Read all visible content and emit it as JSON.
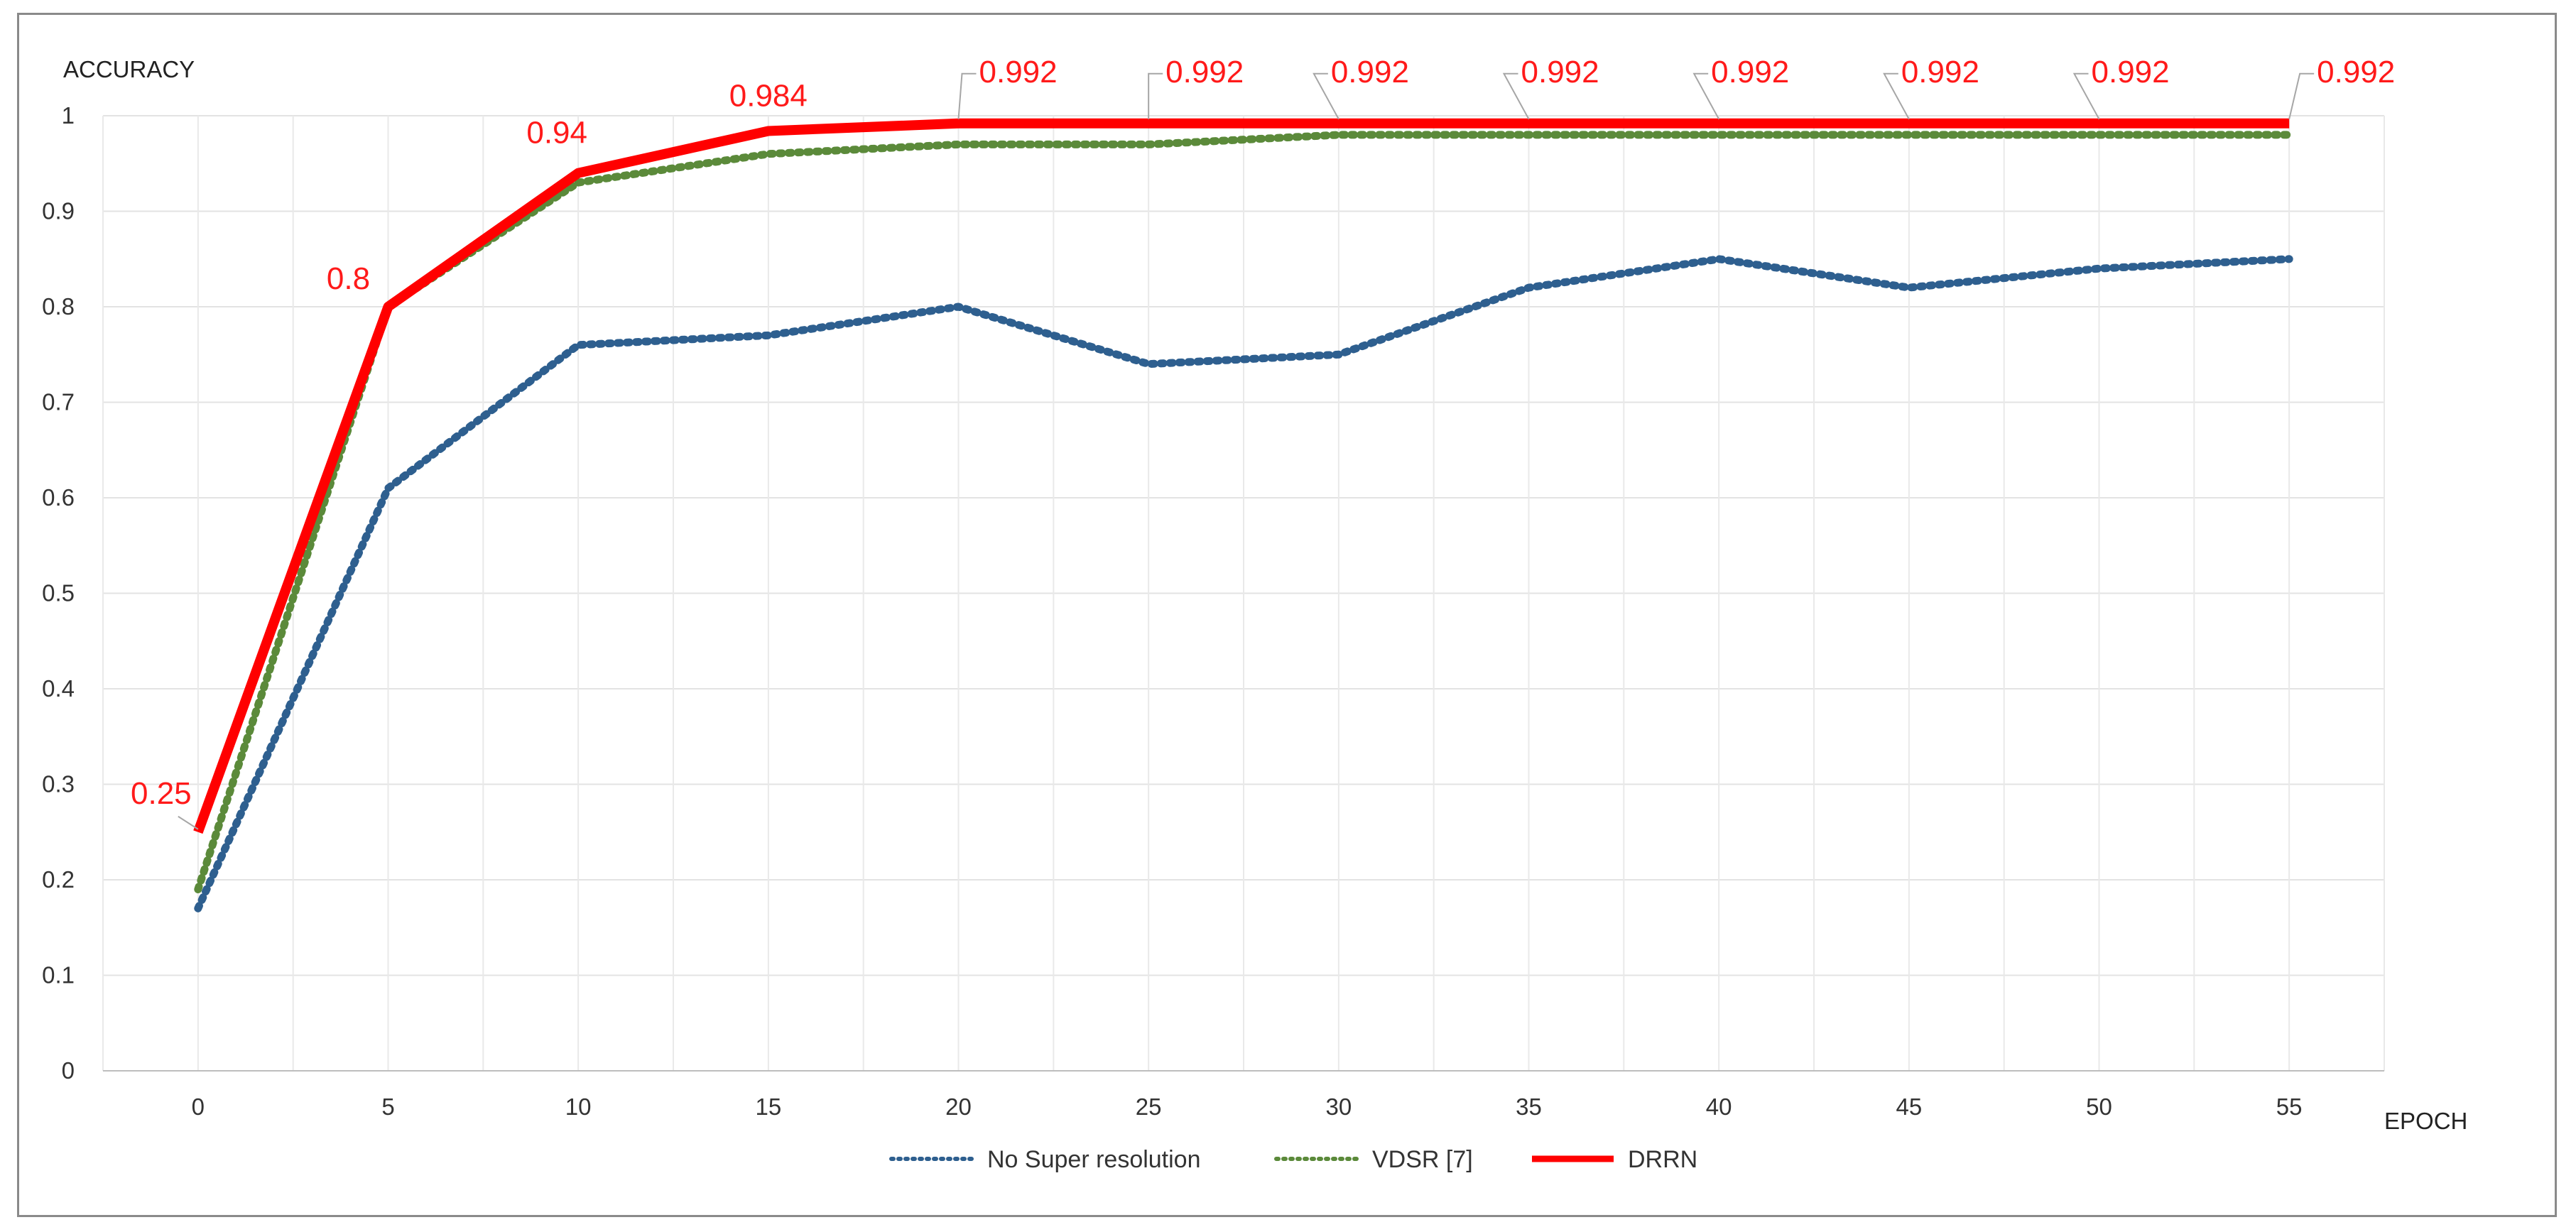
{
  "chart_data": {
    "type": "line",
    "title": "",
    "ylabel": "ACCURACY",
    "xlabel": "EPOCH",
    "x": [
      0,
      5,
      10,
      15,
      20,
      25,
      30,
      35,
      40,
      45,
      50,
      55
    ],
    "ylim": [
      0,
      1
    ],
    "yticks": [
      "0",
      "0.1",
      "0.2",
      "0.3",
      "0.4",
      "0.5",
      "0.6",
      "0.7",
      "0.8",
      "0.9",
      "1"
    ],
    "xticks": [
      "0",
      "5",
      "10",
      "15",
      "20",
      "25",
      "30",
      "35",
      "40",
      "45",
      "50",
      "55"
    ],
    "grid": true,
    "legend_position": "bottom",
    "series": [
      {
        "name": "No Super resolution",
        "color": "#2e5f8f",
        "style": "dotted",
        "values": [
          0.17,
          0.61,
          0.76,
          0.77,
          0.8,
          0.74,
          0.75,
          0.82,
          0.85,
          0.82,
          0.84,
          0.85
        ]
      },
      {
        "name": "VDSR [7]",
        "color": "#5b8a3a",
        "style": "dotted",
        "values": [
          0.19,
          0.8,
          0.93,
          0.96,
          0.97,
          0.97,
          0.98,
          0.98,
          0.98,
          0.98,
          0.98,
          0.98
        ]
      },
      {
        "name": "DRRN",
        "color": "#ff0000",
        "style": "solid",
        "values": [
          0.25,
          0.8,
          0.94,
          0.984,
          0.992,
          0.992,
          0.992,
          0.992,
          0.992,
          0.992,
          0.992,
          0.992
        ],
        "labels": [
          "0.25",
          "0.8",
          "0.94",
          "0.984",
          "0.992",
          "0.992",
          "0.992",
          "0.992",
          "0.992",
          "0.992",
          "0.992",
          "0.992"
        ]
      }
    ]
  }
}
